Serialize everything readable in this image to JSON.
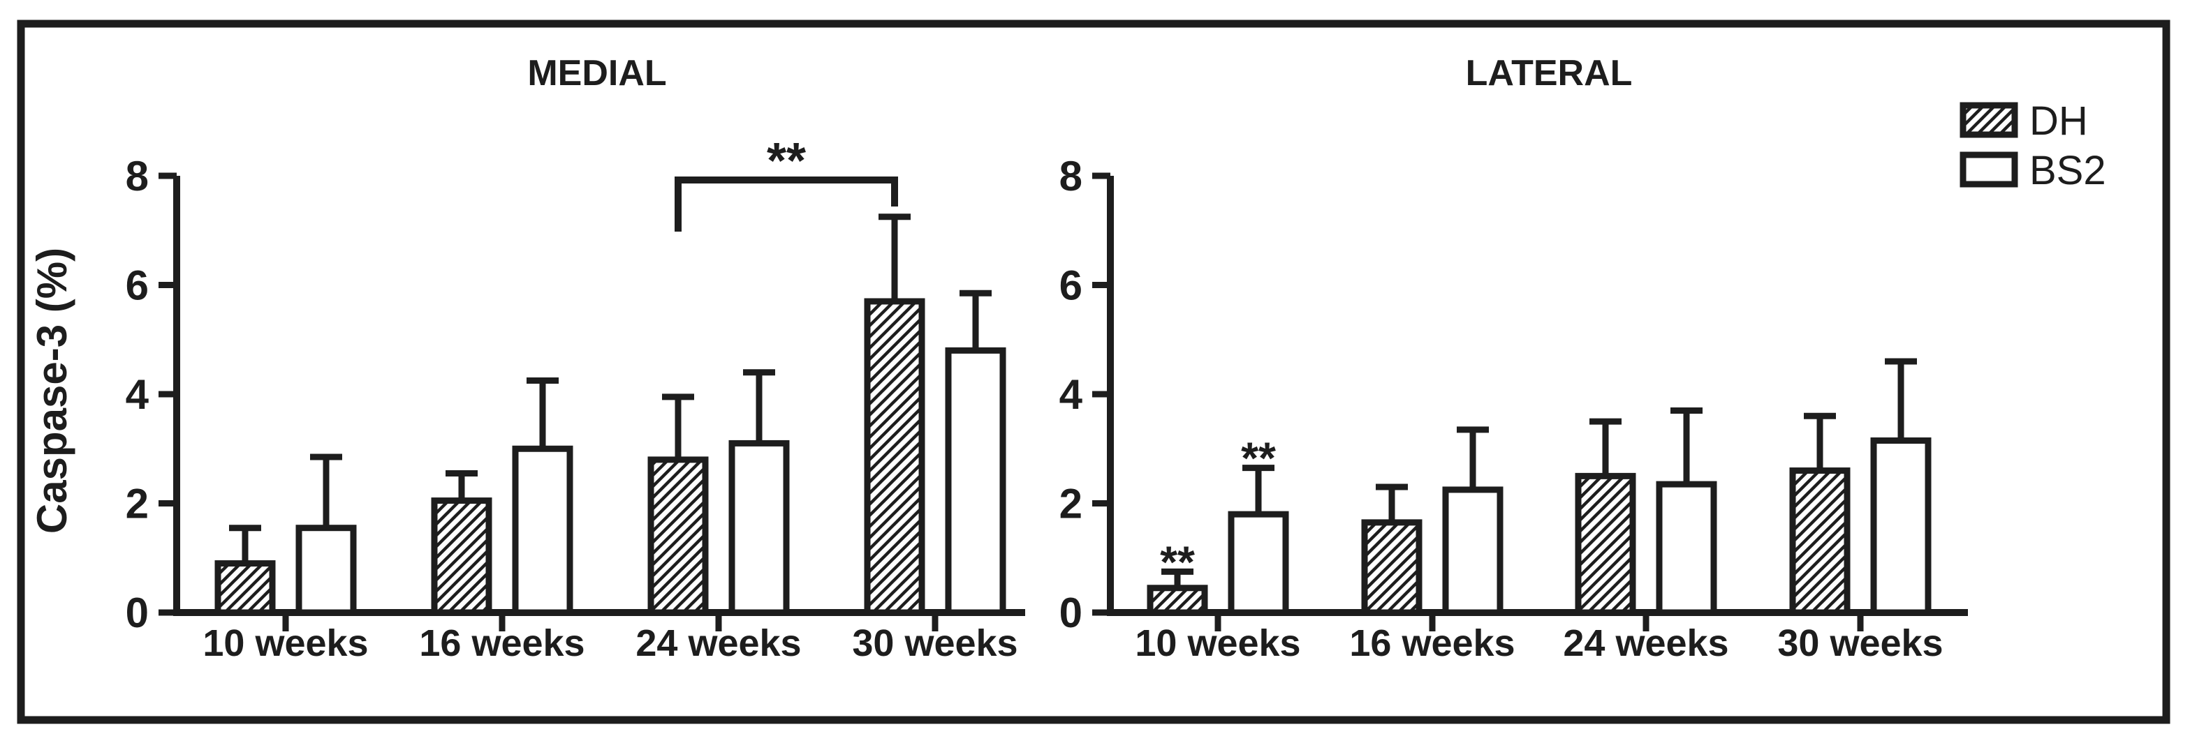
{
  "figure": {
    "background": "#ffffff",
    "ink_color": "#1d1d1d",
    "frame": "thick black border"
  },
  "legend": {
    "items": [
      {
        "label": "DH",
        "swatch": "diagonal-hatch"
      },
      {
        "label": "BS2",
        "swatch": "white"
      }
    ]
  },
  "chart_data": {
    "type": "bar",
    "categories": [
      "10 weeks",
      "16 weeks",
      "24 weeks",
      "30 weeks"
    ],
    "ylabel": "Caspase-3 (%)",
    "ylim": [
      0,
      8
    ],
    "yticks": [
      0,
      2,
      4,
      6,
      8
    ],
    "grid": false,
    "legend_position": "top-right",
    "error_bars": "upper only",
    "panels": [
      {
        "title": "MEDIAL",
        "series": [
          {
            "name": "DH",
            "style": "diagonal-hatch",
            "values": [
              0.9,
              2.05,
              2.8,
              5.7
            ],
            "error_caps": [
              1.55,
              2.55,
              3.95,
              7.25
            ]
          },
          {
            "name": "BS2",
            "style": "white",
            "values": [
              1.55,
              3.0,
              3.1,
              4.8
            ],
            "error_caps": [
              2.85,
              4.25,
              4.4,
              5.85
            ]
          }
        ],
        "significance": [
          {
            "type": "bracket",
            "label": "**",
            "from": {
              "series_index": 0,
              "category_index": 2
            },
            "to": {
              "series_index": 0,
              "category_index": 3
            }
          }
        ]
      },
      {
        "title": "LATERAL",
        "series": [
          {
            "name": "DH",
            "style": "diagonal-hatch",
            "values": [
              0.45,
              1.65,
              2.5,
              2.6
            ],
            "error_caps": [
              0.75,
              2.3,
              3.5,
              3.6
            ]
          },
          {
            "name": "BS2",
            "style": "white",
            "values": [
              1.8,
              2.25,
              2.35,
              3.15
            ],
            "error_caps": [
              2.65,
              3.35,
              3.7,
              4.6
            ]
          }
        ],
        "significance": [
          {
            "type": "star",
            "label": "**",
            "series_index": 0,
            "category_index": 0
          },
          {
            "type": "star",
            "label": "**",
            "series_index": 1,
            "category_index": 0
          }
        ]
      }
    ]
  }
}
